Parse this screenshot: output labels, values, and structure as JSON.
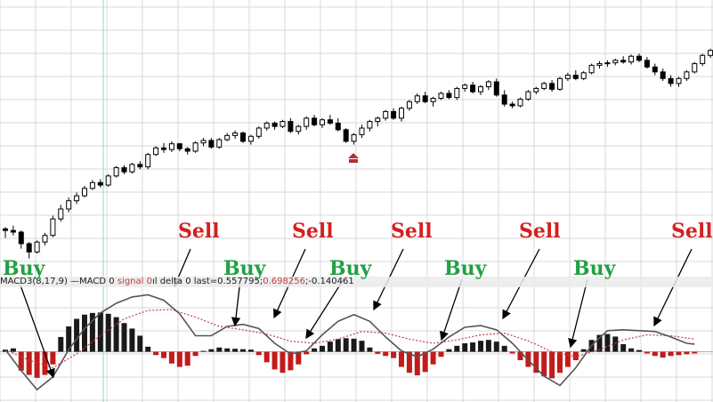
{
  "chart_data": {
    "type": "candlestick-with-macd",
    "price": {
      "ohlc": [
        [
          246,
          248,
          235,
          244
        ],
        [
          244,
          250,
          238,
          242
        ],
        [
          242,
          244,
          222,
          228
        ],
        [
          228,
          230,
          210,
          218
        ],
        [
          218,
          232,
          216,
          230
        ],
        [
          230,
          241,
          226,
          238
        ],
        [
          238,
          262,
          236,
          258
        ],
        [
          258,
          275,
          255,
          270
        ],
        [
          270,
          284,
          266,
          280
        ],
        [
          280,
          290,
          276,
          286
        ],
        [
          286,
          298,
          284,
          295
        ],
        [
          295,
          305,
          293,
          302
        ],
        [
          302,
          306,
          296,
          299
        ],
        [
          299,
          312,
          297,
          310
        ],
        [
          310,
          322,
          308,
          320
        ],
        [
          320,
          323,
          312,
          315
        ],
        [
          315,
          326,
          313,
          324
        ],
        [
          324,
          328,
          318,
          321
        ],
        [
          321,
          338,
          318,
          336
        ],
        [
          336,
          346,
          334,
          344
        ],
        [
          344,
          350,
          338,
          342
        ],
        [
          342,
          352,
          339,
          349
        ],
        [
          349,
          350,
          340,
          343
        ],
        [
          343,
          345,
          336,
          340
        ],
        [
          340,
          352,
          338,
          350
        ],
        [
          350,
          356,
          346,
          353
        ],
        [
          353,
          356,
          343,
          345
        ],
        [
          345,
          356,
          343,
          354
        ],
        [
          354,
          362,
          352,
          359
        ],
        [
          359,
          365,
          355,
          362
        ],
        [
          362,
          364,
          350,
          352
        ],
        [
          352,
          360,
          348,
          358
        ],
        [
          358,
          370,
          355,
          368
        ],
        [
          368,
          376,
          365,
          374
        ],
        [
          374,
          376,
          366,
          370
        ],
        [
          370,
          378,
          368,
          376
        ],
        [
          376,
          380,
          362,
          364
        ],
        [
          364,
          372,
          360,
          370
        ],
        [
          370,
          382,
          366,
          380
        ],
        [
          380,
          384,
          370,
          372
        ],
        [
          372,
          380,
          368,
          378
        ],
        [
          378,
          384,
          372,
          374
        ],
        [
          374,
          380,
          364,
          366
        ],
        [
          366,
          368,
          350,
          352
        ],
        [
          352,
          362,
          348,
          360
        ],
        [
          360,
          372,
          356,
          368
        ],
        [
          368,
          378,
          364,
          376
        ],
        [
          376,
          382,
          370,
          380
        ],
        [
          380,
          390,
          377,
          388
        ],
        [
          388,
          392,
          378,
          380
        ],
        [
          380,
          394,
          376,
          392
        ],
        [
          392,
          402,
          389,
          400
        ],
        [
          400,
          410,
          397,
          407
        ],
        [
          407,
          412,
          398,
          400
        ],
        [
          400,
          406,
          394,
          404
        ],
        [
          404,
          412,
          402,
          410
        ],
        [
          410,
          414,
          403,
          405
        ],
        [
          405,
          418,
          402,
          416
        ],
        [
          416,
          422,
          412,
          420
        ],
        [
          420,
          424,
          410,
          412
        ],
        [
          412,
          420,
          408,
          418
        ],
        [
          418,
          426,
          414,
          424
        ],
        [
          424,
          428,
          406,
          408
        ],
        [
          408,
          414,
          394,
          397
        ],
        [
          397,
          400,
          392,
          395
        ],
        [
          395,
          405,
          393,
          403
        ],
        [
          403,
          414,
          401,
          412
        ],
        [
          412,
          418,
          409,
          416
        ],
        [
          416,
          424,
          414,
          422
        ],
        [
          422,
          426,
          412,
          415
        ],
        [
          415,
          430,
          413,
          428
        ],
        [
          428,
          435,
          425,
          432
        ],
        [
          432,
          438,
          426,
          428
        ],
        [
          428,
          437,
          426,
          435
        ],
        [
          435,
          446,
          433,
          444
        ],
        [
          444,
          449,
          440,
          446
        ],
        [
          446,
          450,
          442,
          447
        ],
        [
          447,
          452,
          444,
          450
        ],
        [
          450,
          455,
          446,
          448
        ],
        [
          448,
          457,
          445,
          455
        ],
        [
          455,
          458,
          448,
          450
        ],
        [
          450,
          454,
          440,
          442
        ],
        [
          442,
          446,
          432,
          436
        ],
        [
          436,
          440,
          425,
          428
        ],
        [
          428,
          432,
          418,
          422
        ],
        [
          422,
          430,
          418,
          428
        ],
        [
          428,
          438,
          425,
          436
        ],
        [
          436,
          448,
          434,
          446
        ],
        [
          446,
          458,
          443,
          456
        ],
        [
          456,
          464,
          453,
          462
        ],
        [
          462,
          468,
          458,
          460
        ],
        [
          460,
          472,
          458,
          470
        ],
        [
          470,
          476,
          466,
          468
        ],
        [
          468,
          474,
          464,
          472
        ],
        [
          472,
          476,
          468,
          470
        ],
        [
          470,
          473,
          462,
          464
        ],
        [
          464,
          472,
          460,
          468
        ],
        [
          468,
          474,
          462,
          466
        ],
        [
          466,
          470,
          455,
          458
        ],
        [
          458,
          468,
          456,
          466
        ],
        [
          466,
          472,
          462,
          470
        ],
        [
          470,
          476,
          466,
          467
        ],
        [
          467,
          472,
          462,
          464
        ]
      ],
      "ylim": [
        200,
        480
      ]
    },
    "macd": {
      "histogram": [
        0.05,
        0.08,
        -0.45,
        -0.55,
        -0.62,
        -0.55,
        -0.3,
        0.35,
        0.6,
        0.78,
        0.88,
        0.92,
        0.93,
        0.9,
        0.82,
        0.68,
        0.55,
        0.38,
        0.12,
        -0.08,
        -0.15,
        -0.28,
        -0.36,
        -0.33,
        -0.1,
        0.02,
        0.06,
        0.1,
        0.08,
        0.07,
        0.06,
        0.05,
        -0.08,
        -0.25,
        -0.42,
        -0.5,
        -0.44,
        -0.3,
        -0.06,
        0.08,
        0.14,
        0.24,
        0.3,
        0.32,
        0.31,
        0.26,
        0.1,
        -0.05,
        -0.1,
        -0.15,
        -0.36,
        -0.5,
        -0.56,
        -0.48,
        -0.3,
        -0.12,
        0.06,
        0.14,
        0.2,
        0.22,
        0.26,
        0.28,
        0.24,
        0.14,
        -0.04,
        -0.2,
        -0.36,
        -0.5,
        -0.58,
        -0.63,
        -0.5,
        -0.36,
        -0.2,
        0.06,
        0.28,
        0.4,
        0.42,
        0.36,
        0.18,
        0.08,
        0.04,
        -0.04,
        -0.1,
        -0.14,
        -0.1,
        -0.08,
        -0.06,
        -0.04
      ],
      "macd_line": [
        [
          0,
          0.05
        ],
        [
          2,
          -0.45
        ],
        [
          4,
          -0.9
        ],
        [
          6,
          -0.6
        ],
        [
          8,
          0.05
        ],
        [
          10,
          0.55
        ],
        [
          12,
          0.92
        ],
        [
          14,
          1.15
        ],
        [
          16,
          1.3
        ],
        [
          18,
          1.35
        ],
        [
          20,
          1.22
        ],
        [
          22,
          0.9
        ],
        [
          24,
          0.38
        ],
        [
          26,
          0.38
        ],
        [
          28,
          0.6
        ],
        [
          30,
          0.65
        ],
        [
          32,
          0.55
        ],
        [
          34,
          0.2
        ],
        [
          36,
          -0.05
        ],
        [
          38,
          0.02
        ],
        [
          40,
          0.4
        ],
        [
          42,
          0.72
        ],
        [
          44,
          0.88
        ],
        [
          46,
          0.72
        ],
        [
          48,
          0.35
        ],
        [
          50,
          0.02
        ],
        [
          52,
          -0.12
        ],
        [
          54,
          0.06
        ],
        [
          56,
          0.35
        ],
        [
          58,
          0.58
        ],
        [
          60,
          0.62
        ],
        [
          62,
          0.52
        ],
        [
          64,
          0.2
        ],
        [
          66,
          -0.2
        ],
        [
          68,
          -0.58
        ],
        [
          70,
          -0.8
        ],
        [
          72,
          -0.38
        ],
        [
          74,
          0.15
        ],
        [
          76,
          0.5
        ],
        [
          78,
          0.52
        ],
        [
          80,
          0.5
        ],
        [
          82,
          0.48
        ],
        [
          84,
          0.35
        ],
        [
          86,
          0.2
        ],
        [
          87,
          0.18
        ]
      ],
      "signal_line": [
        [
          0,
          0.05
        ],
        [
          3,
          -0.2
        ],
        [
          6,
          -0.38
        ],
        [
          9,
          -0.05
        ],
        [
          12,
          0.38
        ],
        [
          15,
          0.78
        ],
        [
          18,
          0.98
        ],
        [
          21,
          1.0
        ],
        [
          24,
          0.82
        ],
        [
          27,
          0.6
        ],
        [
          30,
          0.52
        ],
        [
          33,
          0.42
        ],
        [
          36,
          0.25
        ],
        [
          39,
          0.2
        ],
        [
          42,
          0.3
        ],
        [
          45,
          0.48
        ],
        [
          48,
          0.44
        ],
        [
          51,
          0.3
        ],
        [
          54,
          0.2
        ],
        [
          57,
          0.28
        ],
        [
          60,
          0.4
        ],
        [
          63,
          0.44
        ],
        [
          66,
          0.26
        ],
        [
          69,
          0.0
        ],
        [
          72,
          -0.12
        ],
        [
          75,
          0.05
        ],
        [
          78,
          0.28
        ],
        [
          81,
          0.4
        ],
        [
          84,
          0.38
        ],
        [
          87,
          0.3
        ]
      ],
      "ylim": [
        -1.15,
        1.55
      ]
    },
    "annotations": [
      {
        "text": "Sell",
        "kind": "sell"
      },
      {
        "text": "Sell",
        "kind": "sell"
      },
      {
        "text": "Sell",
        "kind": "sell"
      },
      {
        "text": "Sell",
        "kind": "sell"
      },
      {
        "text": "Sell",
        "kind": "sell"
      },
      {
        "text": "Buy",
        "kind": "buy"
      },
      {
        "text": "Buy",
        "kind": "buy"
      },
      {
        "text": "Buy",
        "kind": "buy"
      },
      {
        "text": "Buy",
        "kind": "buy"
      },
      {
        "text": "Buy",
        "kind": "buy"
      }
    ],
    "macd_label": {
      "prefix": "MACD3(8,17,9) —MACD 0",
      "signal": "signal 0",
      "suffix": "ıl delta 0 last=0.557795;",
      "sig_value": "0.698256",
      "delta_value": ";-0.140461"
    },
    "colors": {
      "grid": "#d8d8d8",
      "bull_body": "#ffffff",
      "bear_body": "#000000",
      "last_bear": "#c02020",
      "hist_pos": "#1a1a1a",
      "hist_neg": "#c41a1a",
      "macd_line": "#555555",
      "signal_line": "#c04040",
      "marker": "#b03030",
      "cursor": "#9ad0c8"
    },
    "grid": true
  }
}
